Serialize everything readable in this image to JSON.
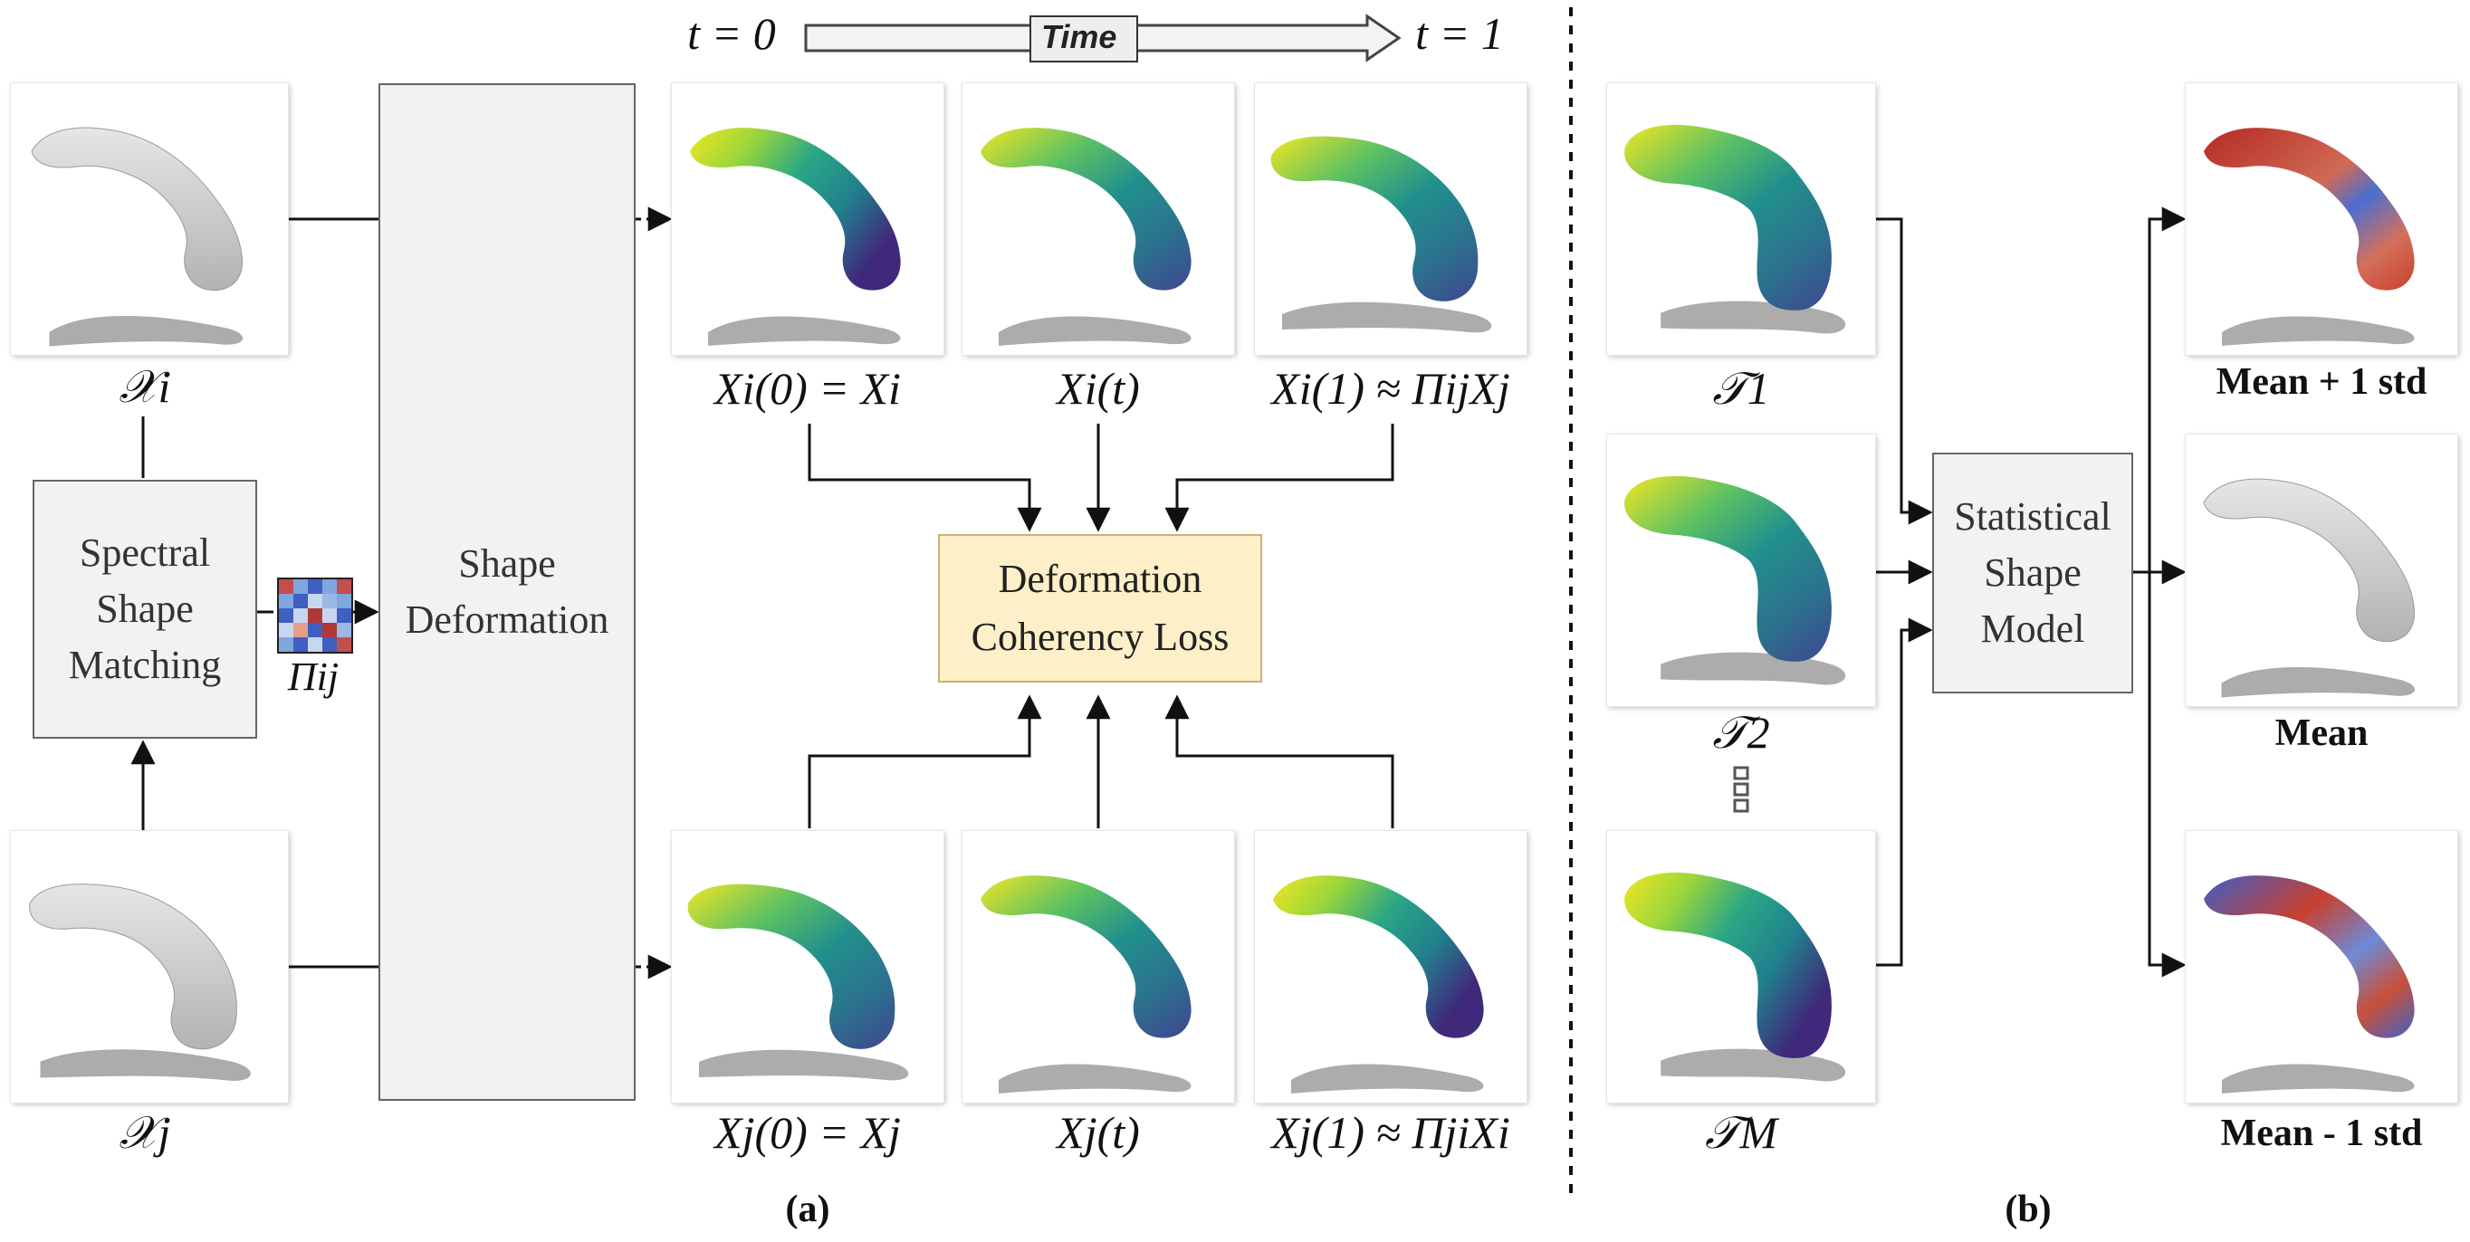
{
  "time_arrow": {
    "start_label": "t = 0",
    "title": "Time",
    "end_label": "t = 1"
  },
  "part_a": {
    "caption": "(a)",
    "input_i_label": "𝒳i",
    "input_j_label": "𝒳j",
    "matching_box": "Spectral Shape Matching",
    "matching_box_lines": [
      "Spectral",
      "Shape",
      "Matching"
    ],
    "correspondence_label": "Πij",
    "deformation_box_lines": [
      "Shape",
      "Deformation"
    ],
    "loss_box_lines": [
      "Deformation",
      "Coherency Loss"
    ],
    "top_row_labels": [
      "Xi(0) = Xi",
      "Xi(t)",
      "Xi(1) ≈ ΠijXj"
    ],
    "bottom_row_labels": [
      "Xj(0) = Xj",
      "Xj(t)",
      "Xj(1) ≈ ΠjiXi"
    ]
  },
  "part_b": {
    "caption": "(b)",
    "template_labels": [
      "𝒯1",
      "𝒯2",
      "𝒯M"
    ],
    "ssm_box_lines": [
      "Statistical",
      "Shape",
      "Model"
    ],
    "output_labels": [
      "Mean + 1 std",
      "Mean",
      "Mean - 1 std"
    ]
  },
  "colors": {
    "box_fill": "#f2f2f2",
    "loss_fill": "#fdf0c8",
    "shape_gray": "#c9c9c9",
    "shadow": "#9e9e9e",
    "viridis_yellow": "#f2e622",
    "viridis_green": "#2aa784",
    "viridis_teal": "#21808d",
    "viridis_blue": "#3b4f8f",
    "viridis_purple": "#40287a",
    "std_red": "#c8402e",
    "std_blue": "#3f63c8"
  },
  "matrix_colors": [
    "#c44e4e",
    "#7fa6dd",
    "#3f5fc2",
    "#7fa6dd",
    "#c44e4e",
    "#7fa6dd",
    "#3f5fc2",
    "#c7d7ef",
    "#9ab9e4",
    "#7fa6dd",
    "#3f5fc2",
    "#c7d7ef",
    "#b23838",
    "#c7d7ef",
    "#3f5fc2",
    "#c7d7ef",
    "#e79f89",
    "#3f5fc2",
    "#b23838",
    "#9ab9e4",
    "#7fa6dd",
    "#3f5fc2",
    "#c7d7ef",
    "#3f5fc2",
    "#c44e4e"
  ]
}
